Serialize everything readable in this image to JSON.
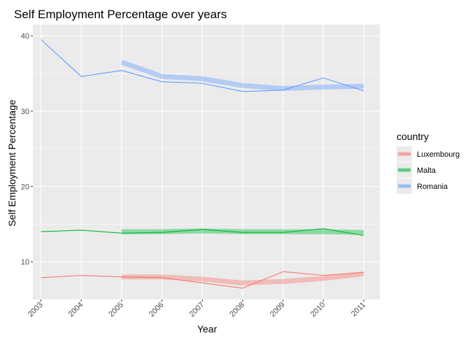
{
  "chart_data": {
    "type": "line",
    "title": "Self Employment Percentage over years",
    "xlabel": "Year",
    "ylabel": "Self Employment Percentage",
    "x": [
      2003,
      2004,
      2005,
      2006,
      2007,
      2008,
      2009,
      2010,
      2011
    ],
    "xlim": [
      2002.8,
      2011.4
    ],
    "ylim": [
      5,
      41.5
    ],
    "yticks": [
      10,
      20,
      30,
      40
    ],
    "grid": true,
    "legend": {
      "title": "country",
      "position": "right"
    },
    "series": [
      {
        "name": "Luxembourg",
        "color": "#F8766D",
        "values": [
          7.9,
          8.2,
          8.0,
          7.9,
          7.2,
          6.5,
          8.7,
          8.2,
          8.6
        ],
        "trend_x": [
          2005,
          2006,
          2007,
          2008,
          2009,
          2010,
          2011
        ],
        "trend_values": [
          8.0,
          8.0,
          7.7,
          7.2,
          7.4,
          7.8,
          8.4
        ]
      },
      {
        "name": "Malta",
        "color": "#00BA38",
        "values": [
          14.0,
          14.2,
          13.8,
          13.9,
          14.3,
          13.9,
          13.9,
          14.4,
          13.5
        ],
        "trend_x": [
          2005,
          2006,
          2007,
          2008,
          2009,
          2010,
          2011
        ],
        "trend_values": [
          14.0,
          14.0,
          14.1,
          14.0,
          14.0,
          14.0,
          13.9
        ]
      },
      {
        "name": "Romania",
        "color": "#619CFF",
        "values": [
          39.5,
          34.6,
          35.4,
          33.9,
          33.7,
          32.6,
          32.8,
          34.4,
          32.7
        ],
        "trend_x": [
          2005,
          2006,
          2007,
          2008,
          2009,
          2010,
          2011
        ],
        "trend_values": [
          36.5,
          34.6,
          34.3,
          33.4,
          33.0,
          33.2,
          33.3
        ]
      }
    ]
  }
}
